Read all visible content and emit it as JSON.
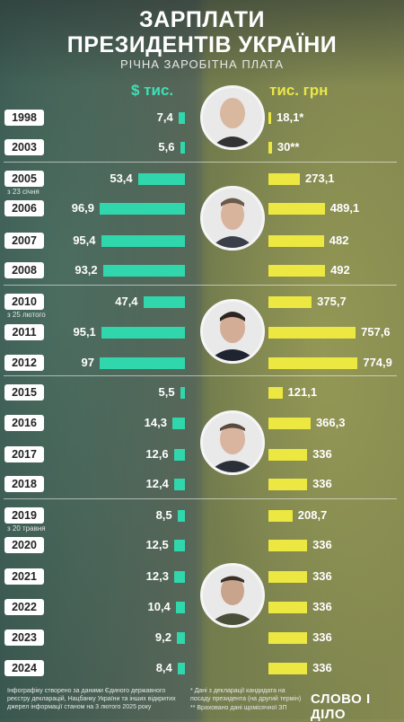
{
  "title_line1": "ЗАРПЛАТИ",
  "title_line2": "ПРЕЗИДЕНТІВ УКРАЇНИ",
  "subtitle": "РІЧНА ЗАРОБІТНА ПЛАТА",
  "header_usd": "$ тис.",
  "header_uah": "тис. грн",
  "footer_left": "Інфографіку створено за даними Єдиного державного реєстру декларацій, Нацбанку України та інших відкритих джерел інформації станом на 3 лютого 2025 року",
  "footer_right_1": "* Дані з декларації кандидата на посаду президента (на другий термін)",
  "footer_right_2": "** Враховано дані щомісячної ЗП",
  "logo": "СЛОВО І ДІЛО",
  "colors": {
    "usd": "#30d7ac",
    "uah": "#ece841"
  },
  "portraits": [
    "president-1-portrait",
    "president-2-portrait",
    "president-3-portrait",
    "president-4-portrait",
    "president-5-portrait"
  ],
  "chart_data": {
    "type": "bar",
    "title": "ЗАРПЛАТИ ПРЕЗИДЕНТІВ УКРАЇНИ",
    "subtitle": "РІЧНА ЗАРОБІТНА ПЛАТА",
    "categories": [
      "1998",
      "2003",
      "2005",
      "2006",
      "2007",
      "2008",
      "2010",
      "2011",
      "2012",
      "2015",
      "2016",
      "2017",
      "2018",
      "2019",
      "2020",
      "2021",
      "2022",
      "2023",
      "2024"
    ],
    "category_notes": [
      "",
      "",
      "з 23 січня",
      "",
      "",
      "",
      "з 25 лютого",
      "",
      "",
      "",
      "",
      "",
      "",
      "з 20 травня",
      "",
      "",
      "",
      "",
      ""
    ],
    "series": [
      {
        "name": "$ тис.",
        "values": [
          7.4,
          5.6,
          53.4,
          96.9,
          95.4,
          93.2,
          47.4,
          95.1,
          97,
          5.5,
          14.3,
          12.6,
          12.4,
          8.5,
          12.5,
          12.3,
          10.4,
          9.2,
          8.4
        ],
        "labels": [
          "7,4",
          "5,6",
          "53,4",
          "96,9",
          "95,4",
          "93,2",
          "47,4",
          "95,1",
          "97",
          "5,5",
          "14,3",
          "12,6",
          "12,4",
          "8,5",
          "12,5",
          "12,3",
          "10,4",
          "9,2",
          "8,4"
        ]
      },
      {
        "name": "тис. грн",
        "values": [
          18.1,
          30,
          273.1,
          489.1,
          482,
          492,
          375.7,
          757.6,
          774.9,
          121.1,
          366.3,
          336,
          336,
          208.7,
          336,
          336,
          336,
          336,
          336
        ],
        "labels": [
          "18,1*",
          "30**",
          "273,1",
          "489,1",
          "482",
          "492",
          "375,7",
          "757,6",
          "774,9",
          "121,1",
          "366,3",
          "336",
          "336",
          "208,7",
          "336",
          "336",
          "336",
          "336",
          "336"
        ]
      }
    ]
  }
}
